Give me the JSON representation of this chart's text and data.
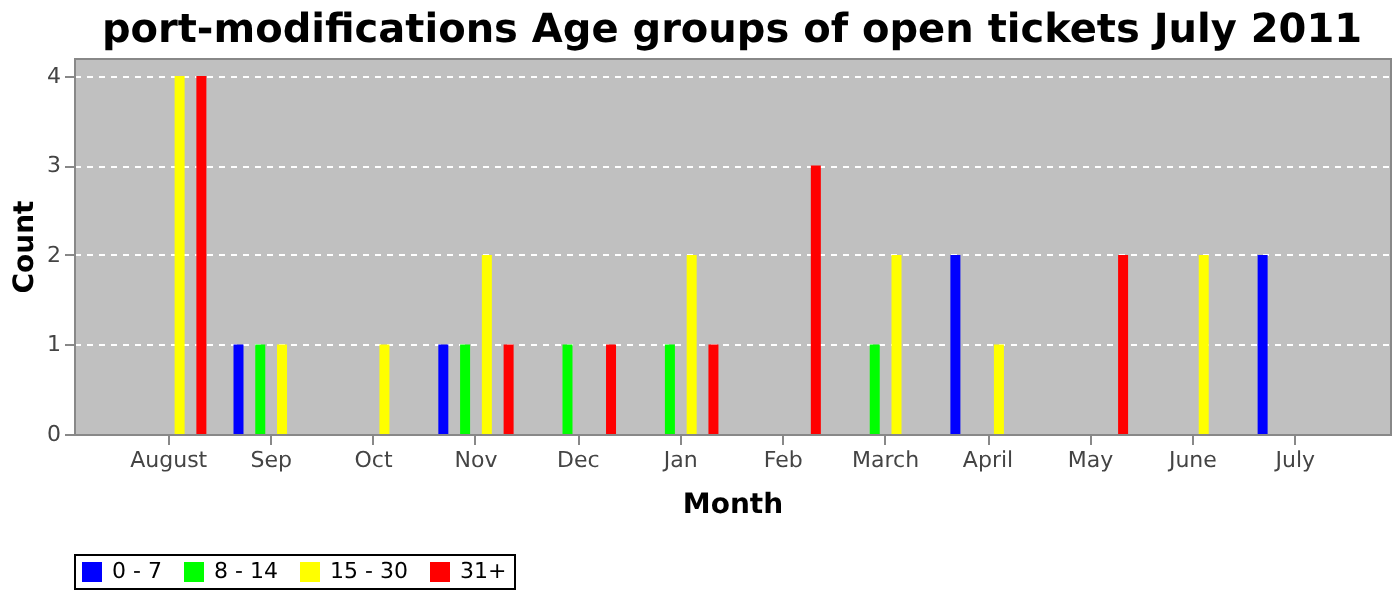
{
  "chart_data": {
    "type": "bar",
    "title": "port-modifications Age groups of open tickets July 2011",
    "xlabel": "Month",
    "ylabel": "Count",
    "categories": [
      "August",
      "Sep",
      "Oct",
      "Nov",
      "Dec",
      "Jan",
      "Feb",
      "March",
      "April",
      "May",
      "June",
      "July"
    ],
    "series": [
      {
        "name": "0 - 7",
        "color": "#0000ff",
        "values": [
          null,
          1,
          null,
          1,
          null,
          null,
          null,
          null,
          2,
          null,
          null,
          2
        ]
      },
      {
        "name": "8 - 14",
        "color": "#00ff00",
        "values": [
          null,
          1,
          null,
          1,
          1,
          1,
          null,
          1,
          null,
          null,
          null,
          null
        ]
      },
      {
        "name": "15 - 30",
        "color": "#ffff00",
        "values": [
          4,
          1,
          1,
          2,
          null,
          2,
          null,
          2,
          1,
          null,
          2,
          null
        ]
      },
      {
        "name": "31+",
        "color": "#ff0000",
        "values": [
          4,
          null,
          null,
          1,
          1,
          1,
          3,
          null,
          null,
          2,
          null,
          null
        ]
      }
    ],
    "ylim": [
      0,
      4.2
    ],
    "yticks": [
      0,
      1,
      2,
      3,
      4
    ],
    "grid": "y",
    "legend": "bottom"
  }
}
